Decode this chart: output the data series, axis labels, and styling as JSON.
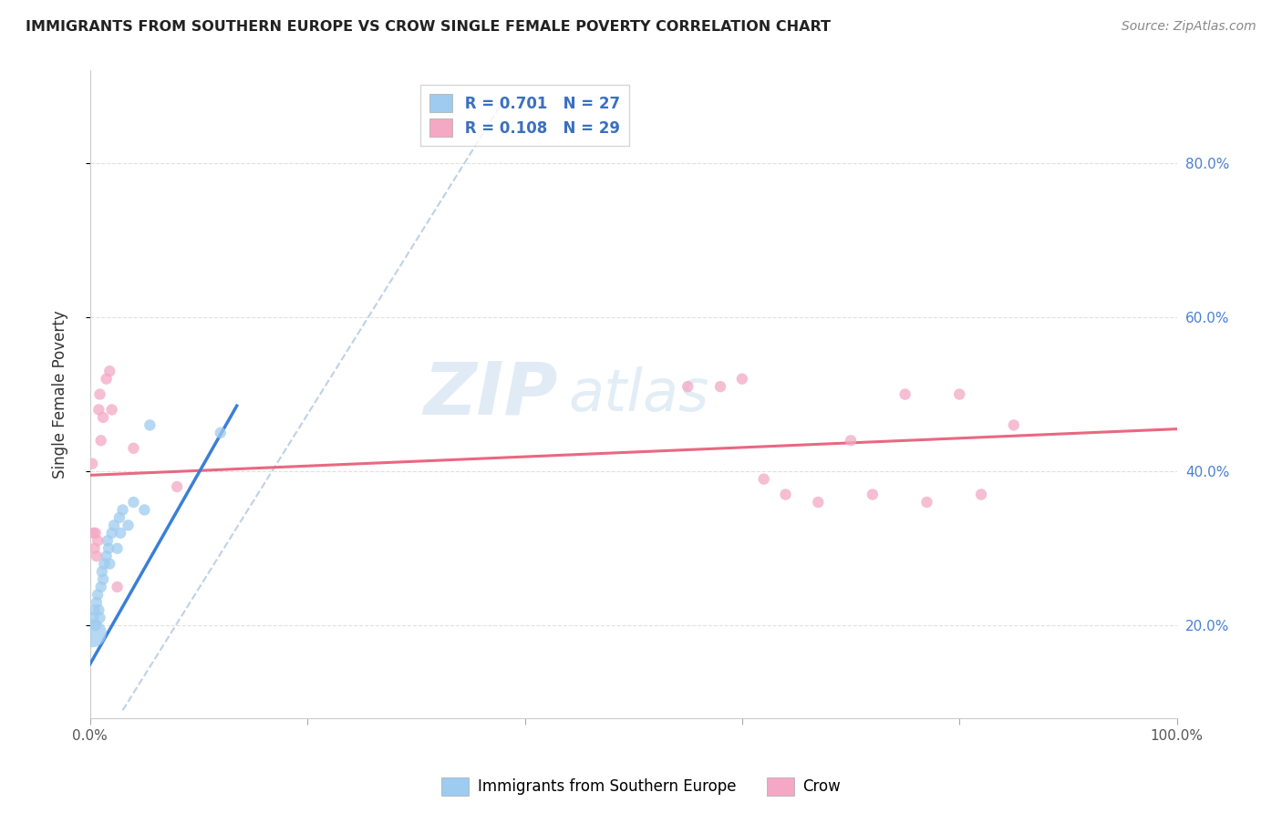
{
  "title": "IMMIGRANTS FROM SOUTHERN EUROPE VS CROW SINGLE FEMALE POVERTY CORRELATION CHART",
  "source": "Source: ZipAtlas.com",
  "ylabel": "Single Female Poverty",
  "xlim": [
    0,
    1.0
  ],
  "ylim": [
    0.08,
    0.92
  ],
  "xticks": [
    0.0,
    0.2,
    0.4,
    0.6,
    0.8,
    1.0
  ],
  "xticklabels": [
    "0.0%",
    "",
    "",
    "",
    "",
    "100.0%"
  ],
  "yticks": [
    0.2,
    0.4,
    0.6,
    0.8
  ],
  "yticklabels": [
    "20.0%",
    "40.0%",
    "60.0%",
    "80.0%"
  ],
  "legend_labels": [
    "Immigrants from Southern Europe",
    "Crow"
  ],
  "blue_color": "#9ecbf0",
  "pink_color": "#f4a8c4",
  "blue_line_color": "#3a7fd9",
  "pink_line_color": "#e8607a",
  "diagonal_color": "#b8cce4",
  "watermark_zip": "ZIP",
  "watermark_atlas": "atlas",
  "blue_scatter_x": [
    0.002,
    0.003,
    0.004,
    0.005,
    0.006,
    0.007,
    0.008,
    0.009,
    0.01,
    0.011,
    0.012,
    0.013,
    0.015,
    0.016,
    0.017,
    0.018,
    0.02,
    0.022,
    0.025,
    0.027,
    0.028,
    0.03,
    0.035,
    0.04,
    0.05,
    0.055,
    0.12
  ],
  "blue_scatter_y": [
    0.19,
    0.21,
    0.22,
    0.2,
    0.23,
    0.24,
    0.22,
    0.21,
    0.25,
    0.27,
    0.26,
    0.28,
    0.29,
    0.31,
    0.3,
    0.28,
    0.32,
    0.33,
    0.3,
    0.34,
    0.32,
    0.35,
    0.33,
    0.36,
    0.35,
    0.46,
    0.45
  ],
  "blue_scatter_size": [
    500,
    80,
    80,
    80,
    80,
    80,
    80,
    80,
    80,
    80,
    80,
    80,
    80,
    80,
    80,
    80,
    80,
    80,
    80,
    80,
    80,
    80,
    80,
    80,
    80,
    80,
    80
  ],
  "pink_scatter_x": [
    0.002,
    0.003,
    0.004,
    0.005,
    0.006,
    0.007,
    0.008,
    0.009,
    0.01,
    0.012,
    0.015,
    0.018,
    0.02,
    0.025,
    0.04,
    0.08,
    0.55,
    0.58,
    0.6,
    0.62,
    0.64,
    0.67,
    0.7,
    0.72,
    0.75,
    0.77,
    0.8,
    0.82,
    0.85
  ],
  "pink_scatter_y": [
    0.41,
    0.32,
    0.3,
    0.32,
    0.29,
    0.31,
    0.48,
    0.5,
    0.44,
    0.47,
    0.52,
    0.53,
    0.48,
    0.25,
    0.43,
    0.38,
    0.51,
    0.51,
    0.52,
    0.39,
    0.37,
    0.36,
    0.44,
    0.37,
    0.5,
    0.36,
    0.5,
    0.37,
    0.46
  ],
  "pink_scatter_size_large": [
    0,
    0,
    0,
    0,
    0,
    0,
    0,
    0,
    0,
    0,
    0,
    0,
    0,
    0,
    0,
    0,
    0,
    0,
    0,
    0,
    0,
    0,
    0,
    0,
    0,
    0,
    0,
    0,
    0
  ],
  "blue_line_x": [
    0.0,
    0.135
  ],
  "blue_line_y": [
    0.15,
    0.485
  ],
  "pink_line_x": [
    0.0,
    1.0
  ],
  "pink_line_y": [
    0.395,
    0.455
  ],
  "diag_line_x": [
    0.03,
    0.38
  ],
  "diag_line_y": [
    0.09,
    0.88
  ],
  "grid_color": "#dddddd",
  "grid_linestyle": "--"
}
